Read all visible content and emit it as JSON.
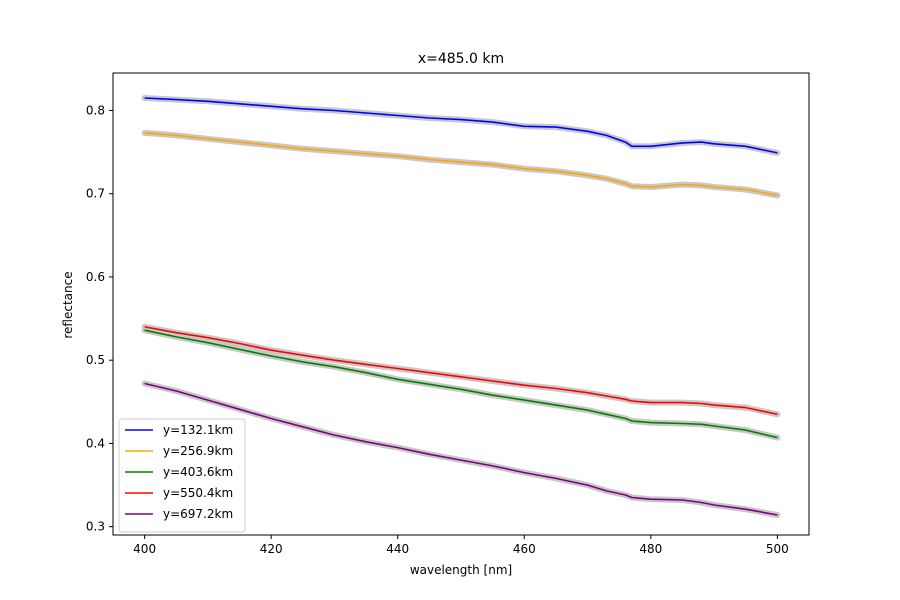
{
  "chart_data": {
    "type": "line",
    "title": "x=485.0 km",
    "xlabel": "wavelength [nm]",
    "ylabel": "reflectance",
    "xlim": [
      395,
      505
    ],
    "ylim": [
      0.29,
      0.845
    ],
    "xticks": [
      400,
      420,
      440,
      460,
      480,
      500
    ],
    "yticks": [
      0.3,
      0.4,
      0.5,
      0.6,
      0.7,
      0.8
    ],
    "grid": false,
    "legend_position": "lower-left",
    "uncertainty_band_color": "#c8c8c8",
    "x": [
      400,
      405,
      410,
      415,
      420,
      425,
      430,
      435,
      440,
      445,
      450,
      455,
      460,
      465,
      470,
      473,
      476,
      477,
      480,
      485,
      488,
      490,
      495,
      500
    ],
    "series": [
      {
        "name": "y=132.1km",
        "color": "#0000ff",
        "values": [
          0.815,
          0.813,
          0.811,
          0.808,
          0.805,
          0.802,
          0.8,
          0.797,
          0.794,
          0.791,
          0.789,
          0.786,
          0.781,
          0.78,
          0.775,
          0.77,
          0.762,
          0.757,
          0.757,
          0.761,
          0.762,
          0.76,
          0.757,
          0.749
        ]
      },
      {
        "name": "y=256.9km",
        "color": "#ffa500",
        "values": [
          0.773,
          0.77,
          0.766,
          0.762,
          0.758,
          0.754,
          0.751,
          0.748,
          0.745,
          0.741,
          0.738,
          0.735,
          0.73,
          0.727,
          0.722,
          0.718,
          0.712,
          0.709,
          0.708,
          0.711,
          0.71,
          0.708,
          0.705,
          0.698
        ]
      },
      {
        "name": "y=403.6km",
        "color": "#008000",
        "values": [
          0.536,
          0.528,
          0.521,
          0.513,
          0.505,
          0.498,
          0.492,
          0.485,
          0.477,
          0.471,
          0.465,
          0.458,
          0.452,
          0.446,
          0.44,
          0.435,
          0.43,
          0.427,
          0.425,
          0.424,
          0.423,
          0.421,
          0.416,
          0.407
        ]
      },
      {
        "name": "y=550.4km",
        "color": "#ff0000",
        "values": [
          0.54,
          0.533,
          0.527,
          0.52,
          0.512,
          0.506,
          0.5,
          0.495,
          0.49,
          0.485,
          0.48,
          0.475,
          0.47,
          0.466,
          0.461,
          0.457,
          0.453,
          0.451,
          0.449,
          0.449,
          0.448,
          0.446,
          0.443,
          0.435
        ]
      },
      {
        "name": "y=697.2km",
        "color": "#800080",
        "values": [
          0.472,
          0.463,
          0.452,
          0.441,
          0.43,
          0.42,
          0.41,
          0.402,
          0.395,
          0.387,
          0.38,
          0.373,
          0.365,
          0.358,
          0.35,
          0.343,
          0.338,
          0.335,
          0.333,
          0.332,
          0.329,
          0.326,
          0.321,
          0.314
        ]
      }
    ]
  }
}
